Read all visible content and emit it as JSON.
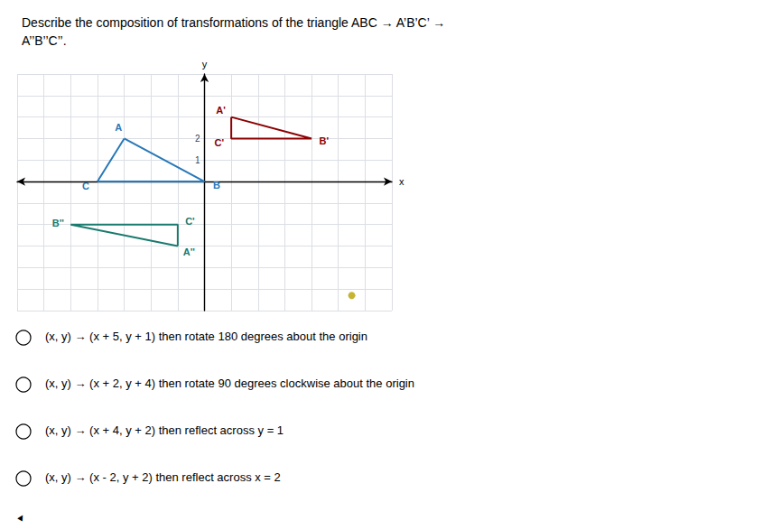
{
  "chart_data": {
    "type": "line",
    "title": "Describe the composition of transformations of the triangle ABC → A’B’C’ →\nA’’B’’C’’.",
    "x_label": "x",
    "y_label": "y",
    "xlim": [
      -7,
      7
    ],
    "ylim": [
      -6,
      5
    ],
    "xticks": [
      -7,
      -6,
      -5,
      -4,
      -3,
      -2,
      -1,
      0,
      1,
      2,
      3,
      4,
      5,
      6,
      7
    ],
    "yticks": [
      -6,
      -5,
      -4,
      -3,
      -2,
      -1,
      0,
      1,
      2,
      3,
      4,
      5
    ],
    "grid": true,
    "tick_labels": false,
    "series": [
      {
        "type": "line",
        "color": "#2878b8",
        "x": [
          -3,
          0,
          -4
        ],
        "values": [
          2,
          0,
          0
        ],
        "labels": [
          "A",
          "B",
          "C"
        ]
      },
      {
        "type": "line",
        "color": "#8b0000",
        "x": [
          1,
          4,
          1
        ],
        "values": [
          3,
          2,
          2
        ],
        "labels": [
          "A'",
          "B'",
          "C'"
        ]
      },
      {
        "type": "line",
        "color": "#1a7a6e",
        "x": [
          -1,
          -5,
          -1
        ],
        "values": [
          -3,
          -2,
          -2
        ],
        "labels": [
          "A''",
          "B''",
          "C'"
        ]
      },
      {
        "type": "scatter",
        "color": "#b8a000",
        "x": [
          5.5
        ],
        "values": [
          -5.3
        ]
      }
    ],
    "annotations": [
      {
        "text": "2",
        "x": 0,
        "y": 2
      },
      {
        "text": "1",
        "x": 0,
        "y": 1
      }
    ],
    "choices": [
      "(x, y) → (x + 5, y + 1) then rotate 180 degrees about the origin",
      "(x, y) → (x + 2, y + 4) then rotate 90 degrees clockwise about the origin",
      "(x, y) → (x + 4, y + 2) then reflect across y = 1",
      "(x, y) → (x - 2, y + 2) then reflect across x = 2"
    ],
    "footer": "▲"
  }
}
